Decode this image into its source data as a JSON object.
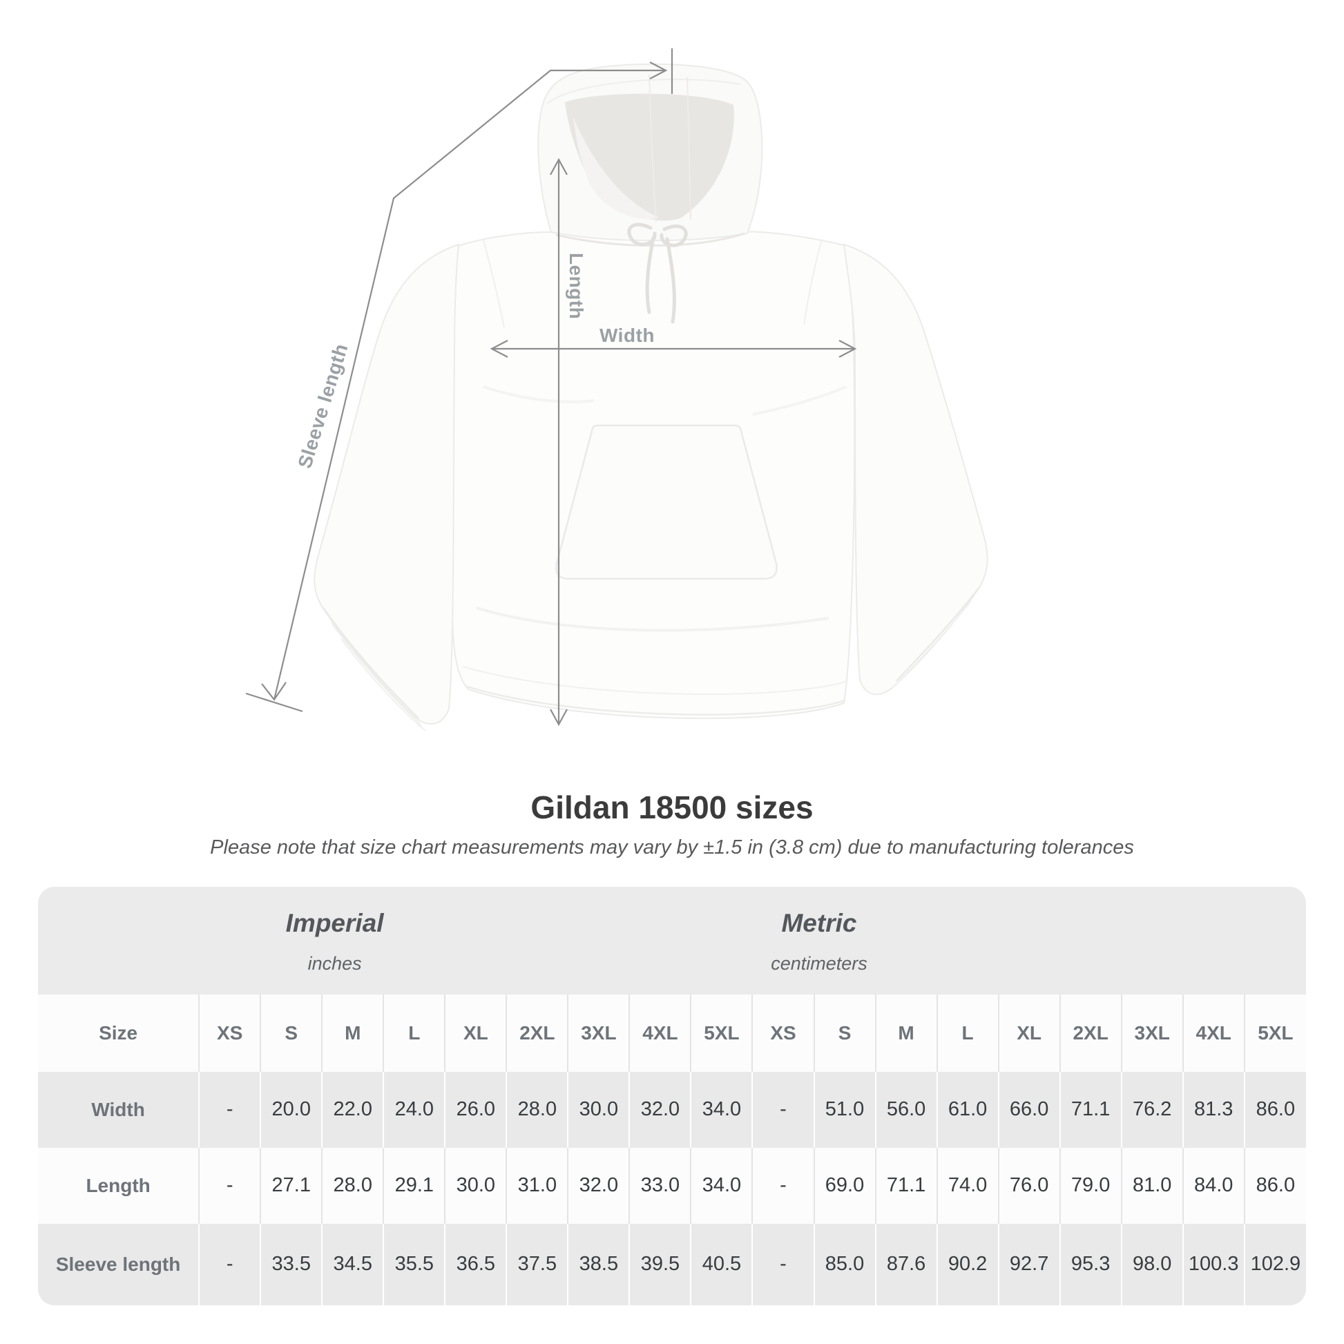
{
  "diagram": {
    "length_label": "Length",
    "width_label": "Width",
    "sleeve_label": "Sleeve length"
  },
  "title": "Gildan 18500 sizes",
  "subtitle": "Please note that size chart measurements may vary by ±1.5 in (3.8 cm) due to manufacturing tolerances",
  "table": {
    "unit_groups": [
      {
        "label": "Imperial",
        "unit": "inches"
      },
      {
        "label": "Metric",
        "unit": "centimeters"
      }
    ],
    "size_column_header": "Size",
    "sizes_imperial": [
      "XS",
      "S",
      "M",
      "L",
      "XL",
      "2XL",
      "3XL",
      "4XL",
      "5XL"
    ],
    "sizes_metric": [
      "XS",
      "S",
      "M",
      "L",
      "XL",
      "2XL",
      "3XL",
      "4XL",
      "5XL"
    ],
    "rows": [
      {
        "label": "Width",
        "imperial": [
          "-",
          "20.0",
          "22.0",
          "24.0",
          "26.0",
          "28.0",
          "30.0",
          "32.0",
          "34.0"
        ],
        "metric": [
          "-",
          "51.0",
          "56.0",
          "61.0",
          "66.0",
          "71.1",
          "76.2",
          "81.3",
          "86.0"
        ]
      },
      {
        "label": "Length",
        "imperial": [
          "-",
          "27.1",
          "28.0",
          "29.1",
          "30.0",
          "31.0",
          "32.0",
          "33.0",
          "34.0"
        ],
        "metric": [
          "-",
          "69.0",
          "71.1",
          "74.0",
          "76.0",
          "79.0",
          "81.0",
          "84.0",
          "86.0"
        ]
      },
      {
        "label": "Sleeve length",
        "imperial": [
          "-",
          "33.5",
          "34.5",
          "35.5",
          "36.5",
          "37.5",
          "38.5",
          "39.5",
          "40.5"
        ],
        "metric": [
          "-",
          "85.0",
          "87.6",
          "90.2",
          "92.7",
          "95.3",
          "98.0",
          "100.3",
          "102.9"
        ]
      }
    ]
  },
  "chart_data": {
    "type": "table",
    "title": "Gildan 18500 sizes",
    "note": "Measurements may vary by ±1.5 in (3.8 cm)",
    "sizes": [
      "XS",
      "S",
      "M",
      "L",
      "XL",
      "2XL",
      "3XL",
      "4XL",
      "5XL"
    ],
    "imperial_unit": "inches",
    "metric_unit": "centimeters",
    "rows": [
      {
        "measure": "Width",
        "imperial": [
          null,
          20.0,
          22.0,
          24.0,
          26.0,
          28.0,
          30.0,
          32.0,
          34.0
        ],
        "metric": [
          null,
          51.0,
          56.0,
          61.0,
          66.0,
          71.1,
          76.2,
          81.3,
          86.0
        ]
      },
      {
        "measure": "Length",
        "imperial": [
          null,
          27.1,
          28.0,
          29.1,
          30.0,
          31.0,
          32.0,
          33.0,
          34.0
        ],
        "metric": [
          null,
          69.0,
          71.1,
          74.0,
          76.0,
          79.0,
          81.0,
          84.0,
          86.0
        ]
      },
      {
        "measure": "Sleeve length",
        "imperial": [
          null,
          33.5,
          34.5,
          35.5,
          36.5,
          37.5,
          38.5,
          39.5,
          40.5
        ],
        "metric": [
          null,
          85.0,
          87.6,
          90.2,
          92.7,
          95.3,
          98.0,
          100.3,
          102.9
        ]
      }
    ],
    "colors": {
      "line_gray": "#8d8d8d",
      "label_gray": "#9ba0a4",
      "table_bg": "#ebebeb",
      "row_gray": "#e9e9e9",
      "value_text": "#393c3e"
    }
  }
}
